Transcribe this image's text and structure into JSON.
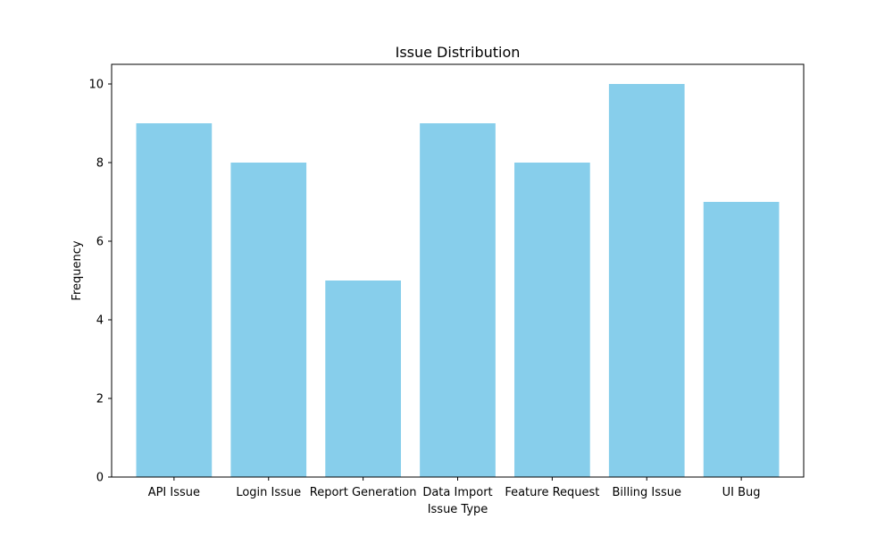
{
  "chart_data": {
    "type": "bar",
    "title": "Issue Distribution",
    "xlabel": "Issue Type",
    "ylabel": "Frequency",
    "categories": [
      "API Issue",
      "Login Issue",
      "Report Generation",
      "Data Import",
      "Feature Request",
      "Billing Issue",
      "UI Bug"
    ],
    "values": [
      9,
      8,
      5,
      9,
      8,
      10,
      7
    ],
    "ylim": [
      0,
      10.5
    ],
    "yticks": [
      0,
      2,
      4,
      6,
      8,
      10
    ],
    "bar_color": "#87ceeb",
    "grid": false
  }
}
